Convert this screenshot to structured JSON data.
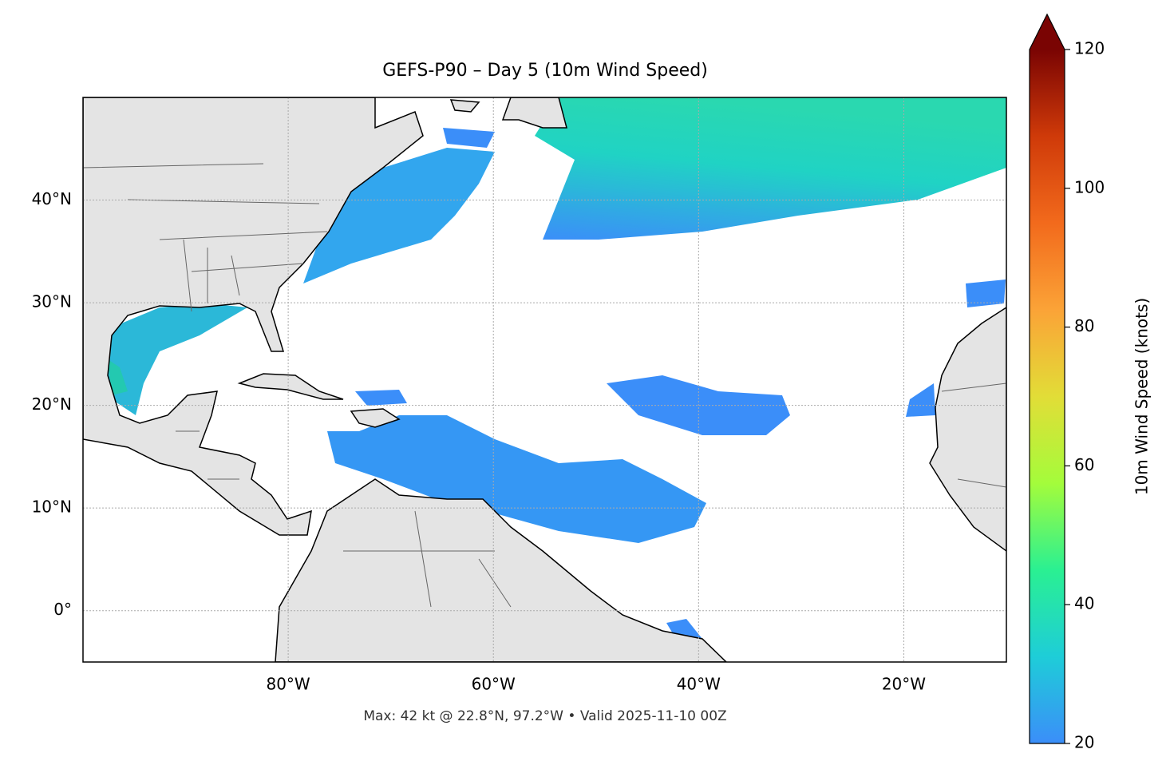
{
  "map": {
    "title": "GEFS-P90 – Day 5 (10m Wind Speed)",
    "footer": "Max: 42 kt @ 22.8°N, 97.2°W • Valid 2025-11-10 00Z",
    "lon_range": [
      -100,
      -10
    ],
    "lat_range": [
      -5,
      50
    ],
    "lon_ticks": [
      {
        "value": -80,
        "label": "80°W"
      },
      {
        "value": -60,
        "label": "60°W"
      },
      {
        "value": -40,
        "label": "40°W"
      },
      {
        "value": -20,
        "label": "20°W"
      }
    ],
    "lat_ticks": [
      {
        "value": 0,
        "label": "0°"
      },
      {
        "value": 10,
        "label": "10°N"
      },
      {
        "value": 20,
        "label": "20°N"
      },
      {
        "value": 30,
        "label": "30°N"
      },
      {
        "value": 40,
        "label": "40°N"
      }
    ],
    "gridlines": true,
    "colorbar": {
      "label": "10m Wind Speed (knots)",
      "lim": [
        20,
        120
      ],
      "ticks": [
        20,
        40,
        60,
        80,
        100,
        120
      ],
      "colors": [
        "#3b8ef9",
        "#1ecdd8",
        "#2af092",
        "#a4fc3b",
        "#e2dd37",
        "#fba337",
        "#f26a1c",
        "#cf3a09",
        "#7a0403"
      ]
    }
  }
}
